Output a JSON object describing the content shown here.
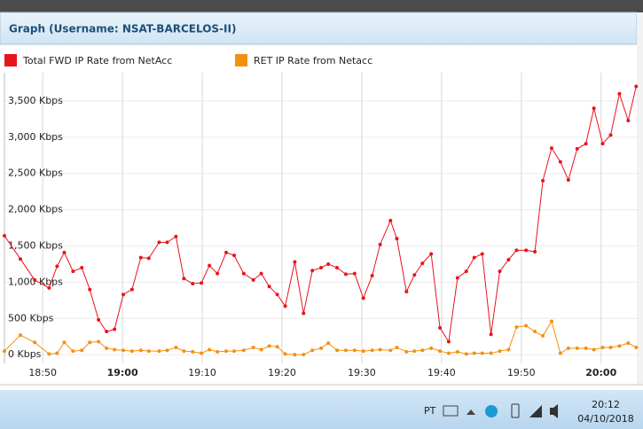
{
  "chart_data": {
    "type": "line",
    "title": "Graph (Username: NSAT-BARCELOS-II)",
    "x": [
      1125.2,
      1127.2,
      1129.0,
      1130.8,
      1131.8,
      1132.7,
      1133.8,
      1134.9,
      1135.9,
      1137.0,
      1138.0,
      1139.0,
      1140.1,
      1141.2,
      1142.3,
      1143.3,
      1144.6,
      1145.6,
      1146.7,
      1147.7,
      1148.8,
      1149.9,
      1150.9,
      1151.9,
      1153.0,
      1154.0,
      1155.2,
      1156.4,
      1157.4,
      1158.4,
      1159.4,
      1160.4,
      1161.6,
      1162.7,
      1163.8,
      1164.9,
      1165.8,
      1166.9,
      1168.0,
      1169.1,
      1170.2,
      1171.3,
      1172.3,
      1173.6,
      1174.4,
      1175.6,
      1176.6,
      1177.6,
      1178.7,
      1179.8,
      1180.9,
      1182.0,
      1183.1,
      1184.1,
      1185.1,
      1186.2,
      1187.3,
      1188.4,
      1189.4,
      1190.6,
      1191.7,
      1192.7,
      1193.8,
      1194.9,
      1195.9,
      1197.0,
      1198.1,
      1199.1,
      1200.2,
      1201.2,
      1202.3,
      1203.4,
      1204.4
    ],
    "series": [
      {
        "name": "Total FWD IP Rate from NetAcc",
        "color": "#e8141b",
        "values": [
          1640,
          1320,
          1030,
          920,
          1220,
          1410,
          1150,
          1200,
          900,
          480,
          320,
          350,
          830,
          900,
          1340,
          1330,
          1550,
          1550,
          1630,
          1050,
          980,
          990,
          1230,
          1120,
          1410,
          1370,
          1120,
          1030,
          1120,
          940,
          830,
          670,
          1280,
          570,
          1160,
          1200,
          1250,
          1200,
          1110,
          1120,
          780,
          1090,
          1520,
          1850,
          1600,
          870,
          1100,
          1260,
          1390,
          370,
          180,
          1060,
          1150,
          1340,
          1390,
          280,
          1150,
          1310,
          1440,
          1440,
          1420,
          2400,
          2850,
          2660,
          2410,
          2840,
          2910,
          3400,
          2910,
          3030,
          3600,
          3230,
          3700
        ]
      },
      {
        "name": "RET IP Rate from Netacc",
        "color": "#f5900f",
        "values": [
          50,
          270,
          170,
          10,
          20,
          170,
          50,
          60,
          170,
          180,
          90,
          70,
          60,
          50,
          60,
          50,
          50,
          60,
          100,
          50,
          40,
          20,
          70,
          40,
          50,
          50,
          60,
          100,
          70,
          120,
          110,
          10,
          0,
          0,
          60,
          90,
          160,
          60,
          60,
          60,
          50,
          60,
          70,
          60,
          100,
          40,
          50,
          60,
          90,
          50,
          20,
          40,
          10,
          20,
          20,
          20,
          50,
          70,
          380,
          400,
          320,
          260,
          460,
          20,
          90,
          90,
          90,
          70,
          100,
          100,
          120,
          160,
          100
        ]
      }
    ],
    "xlim": [
      1125.2,
      1204.7
    ],
    "xticks": [
      {
        "value": 1130,
        "label": "18:50"
      },
      {
        "value": 1140,
        "label": "19:00"
      },
      {
        "value": 1150,
        "label": "19:10"
      },
      {
        "value": 1160,
        "label": "19:20"
      },
      {
        "value": 1170,
        "label": "19:30"
      },
      {
        "value": 1180,
        "label": "19:40"
      },
      {
        "value": 1190,
        "label": "19:50"
      },
      {
        "value": 1200,
        "label": "20:00"
      }
    ],
    "ylim": [
      -120,
      3890
    ],
    "yticks": [
      {
        "value": 0,
        "label": "0 Kbps"
      },
      {
        "value": 500,
        "label": "500 Kbps"
      },
      {
        "value": 1000,
        "label": "1,000 Kbps"
      },
      {
        "value": 1500,
        "label": "1,500 Kbps"
      },
      {
        "value": 2000,
        "label": "2,000 Kbps"
      },
      {
        "value": 2500,
        "label": "2,500 Kbps"
      },
      {
        "value": 3000,
        "label": "3,000 Kbps"
      },
      {
        "value": 3500,
        "label": "3,500 Kbps"
      }
    ],
    "grid": true
  },
  "taskbar": {
    "language": "PT",
    "time": "20:12",
    "date": "04/10/2018"
  }
}
